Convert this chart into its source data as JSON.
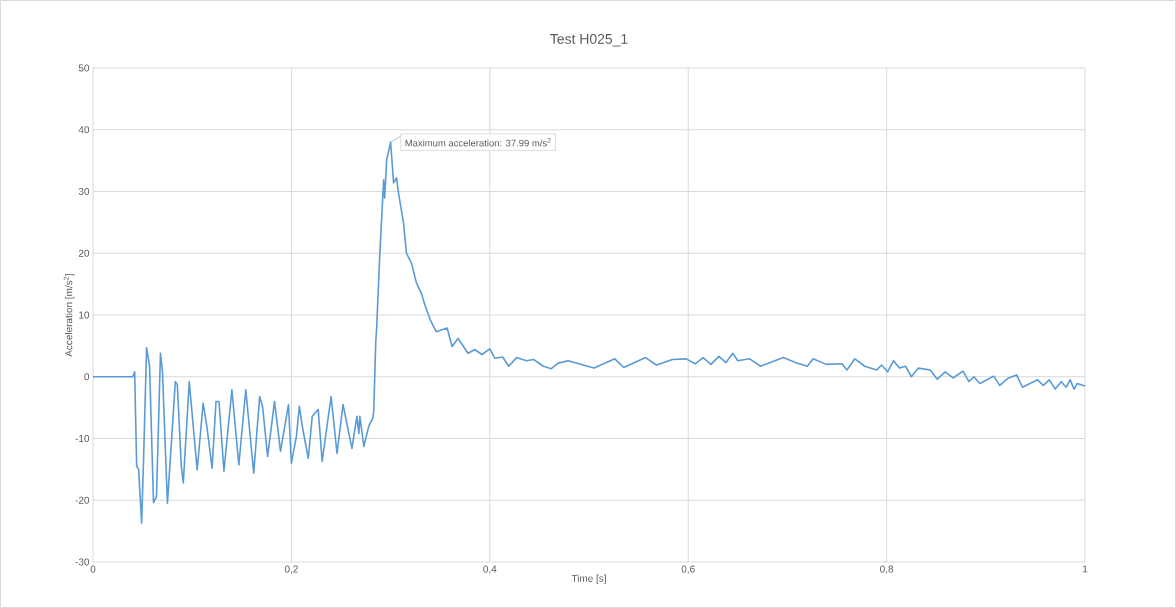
{
  "chart_data": {
    "type": "line",
    "title": "Test H025_1",
    "xlabel": "Time [s]",
    "ylabel": "Acceleration [m/s$^{2}$]",
    "color": "#5b9bd5",
    "grid": true,
    "xlim": [
      0,
      1
    ],
    "ylim": [
      -30,
      50
    ],
    "xticks": [
      0,
      {
        "value": 0.2,
        "label": "0,2"
      },
      {
        "value": 0.4,
        "label": "0,4"
      },
      {
        "value": 0.6,
        "label": "0,6"
      },
      {
        "value": 0.8,
        "label": "0,8"
      },
      1
    ],
    "yticks": [
      -30,
      -20,
      -10,
      0,
      10,
      20,
      30,
      40,
      50
    ],
    "x": [
      0,
      0.02,
      0.04,
      0.042,
      0.044,
      0.046,
      0.049,
      0.051,
      0.054,
      0.057,
      0.061,
      0.064,
      0.068,
      0.07,
      0.075,
      0.083,
      0.085,
      0.089,
      0.091,
      0.097,
      0.105,
      0.111,
      0.115,
      0.12,
      0.124,
      0.127,
      0.132,
      0.14,
      0.147,
      0.154,
      0.162,
      0.168,
      0.171,
      0.176,
      0.183,
      0.189,
      0.197,
      0.2,
      0.205,
      0.208,
      0.211,
      0.217,
      0.221,
      0.227,
      0.231,
      0.24,
      0.246,
      0.252,
      0.261,
      0.266,
      0.268,
      0.269,
      0.273,
      0.278,
      0.282,
      0.283,
      0.285,
      0.286,
      0.289,
      0.293,
      0.294,
      0.296,
      0.3,
      0.303,
      0.306,
      0.308,
      0.313,
      0.316,
      0.321,
      0.326,
      0.331,
      0.335,
      0.34,
      0.346,
      0.357,
      0.362,
      0.368,
      0.378,
      0.385,
      0.392,
      0.4,
      0.405,
      0.413,
      0.419,
      0.427,
      0.437,
      0.444,
      0.454,
      0.462,
      0.469,
      0.479,
      0.505,
      0.526,
      0.535,
      0.557,
      0.568,
      0.584,
      0.598,
      0.607,
      0.615,
      0.623,
      0.631,
      0.638,
      0.645,
      0.65,
      0.662,
      0.673,
      0.696,
      0.708,
      0.72,
      0.726,
      0.739,
      0.755,
      0.76,
      0.768,
      0.778,
      0.79,
      0.795,
      0.801,
      0.807,
      0.813,
      0.819,
      0.825,
      0.832,
      0.844,
      0.851,
      0.859,
      0.867,
      0.877,
      0.883,
      0.888,
      0.894,
      0.908,
      0.914,
      0.923,
      0.931,
      0.937,
      0.952,
      0.958,
      0.964,
      0.97,
      0.976,
      0.981,
      0.985,
      0.989,
      0.992,
      1
    ],
    "values": [
      0,
      0,
      0,
      0.8,
      -14.5,
      -15,
      -23.7,
      -13.1,
      4.7,
      1.7,
      -20.4,
      -19.4,
      3.8,
      0.9,
      -20.5,
      -0.8,
      -1.3,
      -14.5,
      -17.2,
      -0.8,
      -15.1,
      -4.3,
      -8.3,
      -14.8,
      -4,
      -4,
      -15.3,
      -2.1,
      -14.3,
      -2.1,
      -15.6,
      -3.2,
      -4.9,
      -12.9,
      -4,
      -12.1,
      -4.5,
      -14,
      -9.7,
      -4.8,
      -8.1,
      -13.2,
      -6.4,
      -5.3,
      -13.7,
      -3.2,
      -12.4,
      -4.5,
      -11.6,
      -6.4,
      -9.2,
      -6.4,
      -11.3,
      -8,
      -6.7,
      -5.6,
      5.5,
      8.1,
      19.5,
      31.9,
      28.9,
      35.1,
      37.99,
      31.4,
      32.2,
      29.7,
      24.9,
      20,
      18.4,
      15.2,
      13.5,
      11.4,
      9.2,
      7.3,
      7.9,
      4.9,
      6.2,
      3.8,
      4.4,
      3.6,
      4.5,
      3,
      3.2,
      1.7,
      3.1,
      2.6,
      2.8,
      1.7,
      1.3,
      2.2,
      2.6,
      1.4,
      2.9,
      1.5,
      3.1,
      1.9,
      2.8,
      2.9,
      2.1,
      3.1,
      2,
      3.3,
      2.3,
      3.8,
      2.6,
      2.9,
      1.7,
      3.1,
      2.3,
      1.7,
      2.9,
      2,
      2.1,
      1.1,
      2.9,
      1.7,
      1.1,
      1.9,
      0.8,
      2.6,
      1.4,
      1.7,
      0,
      1.4,
      1.1,
      -0.4,
      0.8,
      -0.2,
      0.9,
      -0.8,
      0,
      -1.1,
      0.1,
      -1.4,
      -0.2,
      0.3,
      -1.7,
      -0.5,
      -1.4,
      -0.5,
      -2,
      -0.8,
      -1.7,
      -0.5,
      -2,
      -1.1,
      -1.5
    ],
    "annotations": [
      {
        "text": "Maximum acceleration: 37.99 m/s$^{2}$",
        "x": 0.3,
        "y": 37.99
      }
    ]
  }
}
